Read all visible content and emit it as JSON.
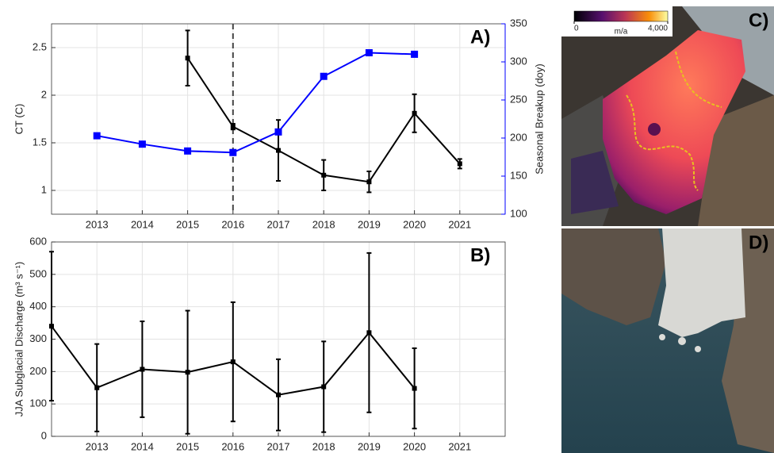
{
  "chart_data": [
    {
      "type": "line",
      "panel_label": "A)",
      "ylabel": "CT (C)",
      "y2label": "Seasonal Breakup (doy)",
      "x": [
        2013,
        2014,
        2015,
        2016,
        2017,
        2018,
        2019,
        2020,
        2021
      ],
      "xlim": [
        2012,
        2022
      ],
      "xticks": [
        2013,
        2014,
        2015,
        2016,
        2017,
        2018,
        2019,
        2020,
        2021
      ],
      "ylim": [
        0.75,
        2.75
      ],
      "yticks": [
        1,
        1.5,
        2,
        2.5
      ],
      "y2lim": [
        100,
        350
      ],
      "y2ticks": [
        100,
        150,
        200,
        250,
        300,
        350
      ],
      "grid": true,
      "vline": 2016,
      "series": [
        {
          "color": "#000000",
          "marker": "square",
          "values": [
            null,
            null,
            2.39,
            1.67,
            1.42,
            1.16,
            1.09,
            1.81,
            1.28
          ],
          "errors": [
            null,
            null,
            0.29,
            0.03,
            0.32,
            0.16,
            0.11,
            0.2,
            0.05
          ]
        },
        {
          "color": "#0000ff",
          "marker": "square",
          "axis": "y2",
          "values": [
            203,
            192,
            183,
            181,
            208,
            281,
            312,
            310,
            null
          ]
        }
      ]
    },
    {
      "type": "line",
      "panel_label": "B)",
      "ylabel": "JJA Subglacial Discharge (m³ s⁻¹)",
      "x": [
        2012,
        2013,
        2014,
        2015,
        2016,
        2017,
        2018,
        2019,
        2020
      ],
      "xlim": [
        2012,
        2022
      ],
      "xticks": [
        2013,
        2014,
        2015,
        2016,
        2017,
        2018,
        2019,
        2020,
        2021
      ],
      "ylim": [
        0,
        600
      ],
      "yticks": [
        0,
        100,
        200,
        300,
        400,
        500,
        600
      ],
      "grid": true,
      "series": [
        {
          "color": "#000000",
          "marker": "square",
          "values": [
            340,
            150,
            207,
            198,
            230,
            128,
            153,
            320,
            148
          ],
          "errors": [
            230,
            135,
            148,
            190,
            184,
            110,
            140,
            246,
            124
          ]
        }
      ]
    }
  ],
  "image_panels": [
    {
      "label": "C)",
      "colorbar": {
        "lim": [
          0,
          4000
        ],
        "ticks": [
          0,
          {
            "value": 4000,
            "label": "4,000"
          }
        ],
        "label": "m/a"
      }
    },
    {
      "label": "D)"
    }
  ]
}
